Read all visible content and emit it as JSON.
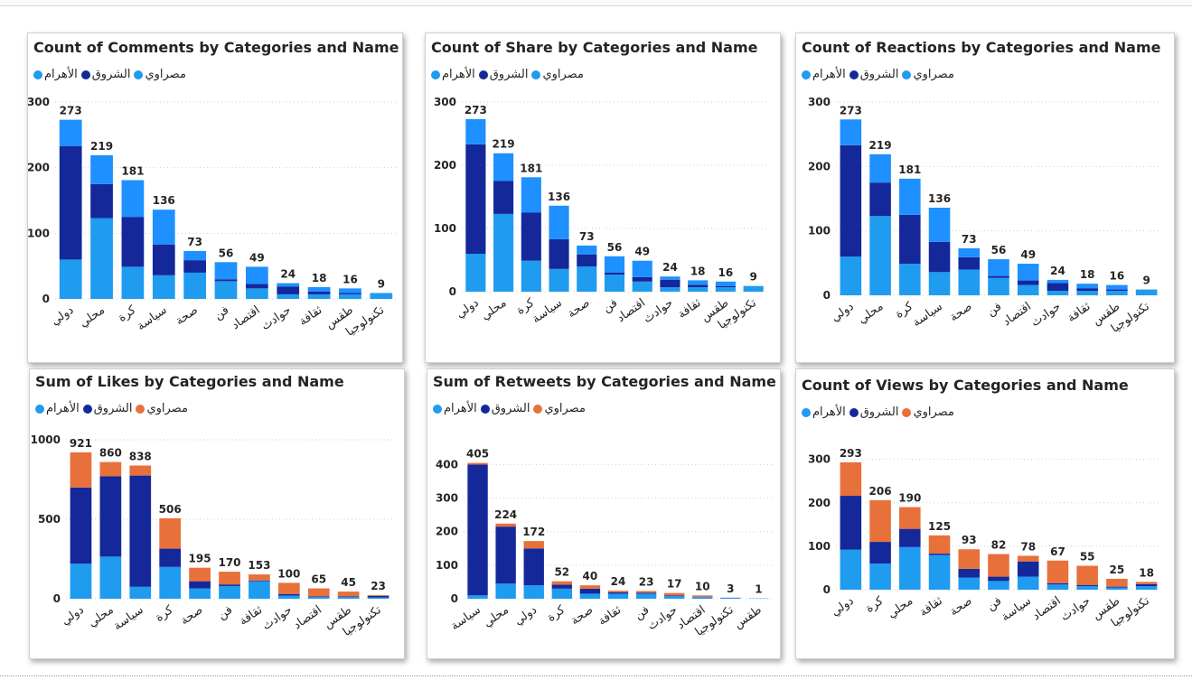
{
  "series_names": [
    "الأهرام",
    "الشروق",
    "مصراوي"
  ],
  "chart_data": [
    {
      "type": "bar",
      "stacked": true,
      "title": "Count of Comments by Categories and Name",
      "categories": [
        "دولي",
        "محلي",
        "كرة",
        "سياسة",
        "صحة",
        "فن",
        "اقتصاد",
        "حوادث",
        "ثقافة",
        "طقس",
        "تكنولوجيا"
      ],
      "totals": [
        273,
        219,
        181,
        136,
        73,
        56,
        49,
        24,
        18,
        16,
        9
      ],
      "series": [
        {
          "name": "مصراوي",
          "color": "#1f9bf0",
          "values": [
            60,
            123,
            49,
            36,
            40,
            27,
            16,
            7,
            7,
            7,
            9
          ]
        },
        {
          "name": "الشروق",
          "color": "#14289a",
          "values": [
            173,
            52,
            76,
            47,
            19,
            3,
            7,
            12,
            4,
            2,
            0
          ]
        },
        {
          "name": "الأهرام",
          "color": "#1e90ff",
          "values": [
            40,
            44,
            56,
            53,
            14,
            26,
            26,
            5,
            7,
            7,
            0
          ]
        }
      ],
      "yticks": [
        0,
        100,
        200,
        300
      ],
      "ylim": [
        0,
        300
      ],
      "legend": "top-left",
      "grid": true
    },
    {
      "type": "bar",
      "stacked": true,
      "title": "Count of Share by Categories and Name",
      "categories": [
        "دولي",
        "محلي",
        "كرة",
        "سياسة",
        "صحة",
        "فن",
        "اقتصاد",
        "حوادث",
        "ثقافة",
        "طقس",
        "تكنولوجيا"
      ],
      "totals": [
        273,
        219,
        181,
        136,
        73,
        56,
        49,
        24,
        18,
        16,
        9
      ],
      "series": [
        {
          "name": "مصراوي",
          "color": "#1f9bf0",
          "values": [
            60,
            123,
            49,
            36,
            40,
            27,
            16,
            7,
            7,
            7,
            9
          ]
        },
        {
          "name": "الشروق",
          "color": "#14289a",
          "values": [
            173,
            52,
            76,
            47,
            19,
            3,
            7,
            12,
            4,
            2,
            0
          ]
        },
        {
          "name": "الأهرام",
          "color": "#1e90ff",
          "values": [
            40,
            44,
            56,
            53,
            14,
            26,
            26,
            5,
            7,
            7,
            0
          ]
        }
      ],
      "yticks": [
        0,
        100,
        200,
        300
      ],
      "ylim": [
        0,
        300
      ],
      "legend": "top-left",
      "grid": true
    },
    {
      "type": "bar",
      "stacked": true,
      "title": "Count of Reactions by Categories and Name",
      "categories": [
        "دولي",
        "محلي",
        "كرة",
        "سياسة",
        "صحة",
        "فن",
        "اقتصاد",
        "حوادث",
        "ثقافة",
        "طقس",
        "تكنولوجيا"
      ],
      "totals": [
        273,
        219,
        181,
        136,
        73,
        56,
        49,
        24,
        18,
        16,
        9
      ],
      "series": [
        {
          "name": "مصراوي",
          "color": "#1f9bf0",
          "values": [
            60,
            123,
            49,
            36,
            40,
            27,
            16,
            7,
            7,
            7,
            9
          ]
        },
        {
          "name": "الشروق",
          "color": "#14289a",
          "values": [
            173,
            52,
            76,
            47,
            19,
            3,
            7,
            12,
            4,
            2,
            0
          ]
        },
        {
          "name": "الأهرام",
          "color": "#1e90ff",
          "values": [
            40,
            44,
            56,
            53,
            14,
            26,
            26,
            5,
            7,
            7,
            0
          ]
        }
      ],
      "yticks": [
        0,
        100,
        200,
        300
      ],
      "ylim": [
        0,
        300
      ],
      "legend": "top-left",
      "grid": true
    },
    {
      "type": "bar",
      "stacked": true,
      "title": "Sum of Likes by Categories and Name",
      "categories": [
        "دولي",
        "محلي",
        "سياسة",
        "كرة",
        "صحة",
        "فن",
        "ثقافة",
        "حوادث",
        "اقتصاد",
        "طقس",
        "تكنولوجيا"
      ],
      "totals": [
        921,
        860,
        838,
        506,
        195,
        170,
        153,
        100,
        65,
        45,
        23
      ],
      "series": [
        {
          "name": "الأهرام",
          "color": "#1f9bf0",
          "values": [
            220,
            265,
            75,
            200,
            65,
            80,
            110,
            20,
            10,
            10,
            8
          ]
        },
        {
          "name": "الشروق",
          "color": "#14289a",
          "values": [
            480,
            505,
            700,
            115,
            45,
            10,
            5,
            10,
            5,
            5,
            10
          ]
        },
        {
          "name": "مصراوي",
          "color": "#e8703a",
          "values": [
            221,
            90,
            63,
            191,
            85,
            80,
            38,
            70,
            50,
            30,
            5
          ]
        }
      ],
      "yticks": [
        0,
        500,
        1000
      ],
      "ylim": [
        0,
        1000
      ],
      "legend": "top-left",
      "grid": true
    },
    {
      "type": "bar",
      "stacked": true,
      "title": "Sum of Retweets by Categories and Name",
      "categories": [
        "سياسة",
        "محلي",
        "دولي",
        "كرة",
        "صحة",
        "ثقافة",
        "فن",
        "حوادث",
        "اقتصاد",
        "تكنولوجيا",
        "طقس"
      ],
      "totals": [
        405,
        224,
        172,
        52,
        40,
        24,
        23,
        17,
        10,
        3,
        1
      ],
      "series": [
        {
          "name": "الأهرام",
          "color": "#1f9bf0",
          "values": [
            10,
            45,
            40,
            30,
            15,
            15,
            15,
            8,
            5,
            2,
            1
          ]
        },
        {
          "name": "الشروق",
          "color": "#14289a",
          "values": [
            390,
            170,
            110,
            12,
            15,
            4,
            3,
            2,
            1,
            1,
            0
          ]
        },
        {
          "name": "مصراوي",
          "color": "#e8703a",
          "values": [
            5,
            9,
            22,
            10,
            10,
            5,
            5,
            7,
            4,
            0,
            0
          ]
        }
      ],
      "yticks": [
        0,
        100,
        200,
        300,
        400
      ],
      "ylim": [
        0,
        420
      ],
      "legend": "top-left",
      "grid": true
    },
    {
      "type": "bar",
      "stacked": true,
      "title": "Count of Views by Categories and Name",
      "categories": [
        "دولي",
        "كرة",
        "محلي",
        "ثقافة",
        "صحة",
        "فن",
        "سياسة",
        "اقتصاد",
        "حوادث",
        "طقس",
        "تكنولوجيا"
      ],
      "totals": [
        293,
        206,
        190,
        125,
        93,
        82,
        78,
        67,
        55,
        25,
        18
      ],
      "series": [
        {
          "name": "الأهرام",
          "color": "#1f9bf0",
          "values": [
            92,
            60,
            98,
            80,
            28,
            20,
            30,
            12,
            8,
            5,
            8
          ]
        },
        {
          "name": "الشروق",
          "color": "#14289a",
          "values": [
            124,
            50,
            42,
            3,
            20,
            10,
            35,
            3,
            3,
            2,
            5
          ]
        },
        {
          "name": "مصراوي",
          "color": "#e8703a",
          "values": [
            77,
            96,
            50,
            42,
            45,
            52,
            13,
            52,
            44,
            18,
            5
          ]
        }
      ],
      "yticks": [
        0,
        100,
        200,
        300
      ],
      "ylim": [
        0,
        320
      ],
      "legend": "top-left",
      "grid": true
    }
  ],
  "legends": [
    [
      {
        "label": "الأهرام",
        "color": "#1f9bf0"
      },
      {
        "label": "الشروق",
        "color": "#14289a"
      },
      {
        "label": "مصراوي",
        "color": "#1f9bf0"
      }
    ],
    [
      {
        "label": "الأهرام",
        "color": "#1f9bf0"
      },
      {
        "label": "الشروق",
        "color": "#14289a"
      },
      {
        "label": "مصراوي",
        "color": "#1f9bf0"
      }
    ],
    [
      {
        "label": "الأهرام",
        "color": "#1f9bf0"
      },
      {
        "label": "الشروق",
        "color": "#14289a"
      },
      {
        "label": "مصراوي",
        "color": "#1f9bf0"
      }
    ],
    [
      {
        "label": "الأهرام",
        "color": "#1f9bf0"
      },
      {
        "label": "الشروق",
        "color": "#14289a"
      },
      {
        "label": "مصراوي",
        "color": "#e8703a"
      }
    ],
    [
      {
        "label": "الأهرام",
        "color": "#1f9bf0"
      },
      {
        "label": "الشروق",
        "color": "#14289a"
      },
      {
        "label": "مصراوي",
        "color": "#e8703a"
      }
    ],
    [
      {
        "label": "الأهرام",
        "color": "#1f9bf0"
      },
      {
        "label": "الشروق",
        "color": "#14289a"
      },
      {
        "label": "مصراوي",
        "color": "#e8703a"
      }
    ]
  ]
}
